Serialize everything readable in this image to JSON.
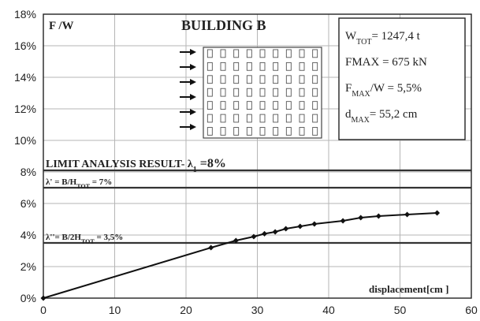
{
  "chart_data": {
    "type": "line",
    "title": "BUILDING B",
    "ylabel": "F /W",
    "xlabel": "displacement[cm ]",
    "xlim": [
      0,
      60
    ],
    "ylim": [
      0,
      0.18
    ],
    "x_ticks": [
      0,
      10,
      20,
      30,
      40,
      50,
      60
    ],
    "x_tick_labels": [
      "0",
      "10",
      "20",
      "30",
      "40",
      "50",
      "60"
    ],
    "y_ticks": [
      0,
      0.02,
      0.04,
      0.06,
      0.08,
      0.1,
      0.12,
      0.14,
      0.16,
      0.18
    ],
    "y_tick_labels": [
      "0%",
      "2%",
      "4%",
      "6%",
      "8%",
      "10%",
      "12%",
      "14%",
      "16%",
      "18%"
    ],
    "grid": true,
    "series": [
      {
        "x": [
          0,
          23.5,
          27,
          29.5,
          31,
          32.5,
          34,
          36,
          38,
          42,
          44.5,
          47,
          51,
          55.2
        ],
        "y": [
          0,
          0.032,
          0.0365,
          0.039,
          0.0408,
          0.042,
          0.044,
          0.0455,
          0.047,
          0.049,
          0.051,
          0.052,
          0.053,
          0.054
        ]
      }
    ],
    "reference_lines": [
      {
        "y": 0.081,
        "label": "LIMIT ANALYSIS RESULT- λ",
        "label_sub": "1",
        "label_tail": " =8%"
      },
      {
        "y": 0.07,
        "label": "λ' = B/H",
        "label_sub": "TOT",
        "label_tail": " = 7%"
      },
      {
        "y": 0.035,
        "label": "λ''= B/2H",
        "label_sub": "TOT",
        "label_tail": " = 3,5%"
      }
    ],
    "info_box": [
      {
        "main": "W",
        "sub": "TOT",
        "tail": "= 1247,4 t"
      },
      {
        "main": "FMAX = 675 kN",
        "sub": "",
        "tail": ""
      },
      {
        "main": "F",
        "sub": "MAX",
        "tail": "/W = 5,5%"
      },
      {
        "main": "d",
        "sub": "MAX",
        "tail": "= 55,2 cm"
      }
    ],
    "building_sketch": {
      "columns": 9,
      "rows": 7,
      "arrows": 6
    }
  }
}
